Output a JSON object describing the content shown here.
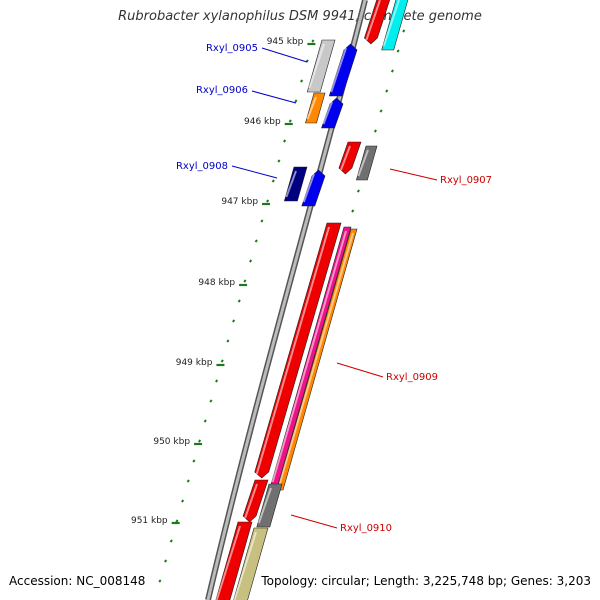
{
  "title": "Rubrobacter xylanophilus DSM 9941, complete genome",
  "footer": {
    "accession": "Accession: NC_008148",
    "topology": "Topology: circular; Length: 3,225,748 bp; Genes: 3,203"
  },
  "ruler": {
    "labels": [
      "945 kbp",
      "946 kbp",
      "947 kbp",
      "948 kbp",
      "949 kbp",
      "950 kbp",
      "951 kbp"
    ],
    "tick_color": "#1a7a1a"
  },
  "genes": [
    {
      "name": "Rxyl_0905",
      "strand": "+",
      "label_color": "#0000cc"
    },
    {
      "name": "Rxyl_0906",
      "strand": "+",
      "label_color": "#0000cc"
    },
    {
      "name": "Rxyl_0907",
      "strand": "-",
      "label_color": "#cc0000"
    },
    {
      "name": "Rxyl_0908",
      "strand": "+",
      "label_color": "#0000cc"
    },
    {
      "name": "Rxyl_0909",
      "strand": "-",
      "label_color": "#cc0000"
    },
    {
      "name": "Rxyl_0910",
      "strand": "-",
      "label_color": "#cc0000"
    }
  ],
  "colors": {
    "backbone": "#888888",
    "forward_cds": "#0000ee",
    "reverse_cds": "#ee0000",
    "magenta": "#ee1188",
    "orange": "#ff8800",
    "cyan": "#00eeee",
    "gray": "#707070",
    "light_gray": "#c8c8c8",
    "navy": "#000080",
    "khaki": "#c8c080"
  }
}
